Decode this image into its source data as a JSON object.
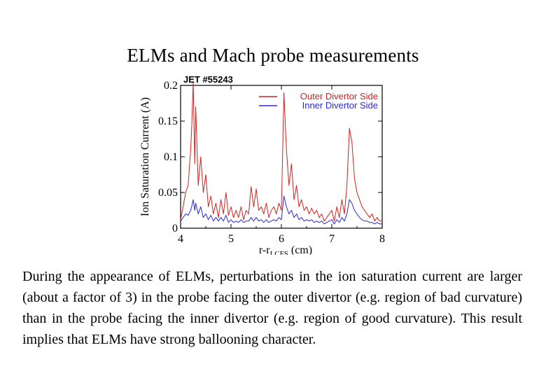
{
  "slide": {
    "title": "ELMs and Mach probe measurements",
    "caption": "During the appearance of ELMs, perturbations in the ion saturation current are larger (about a factor of 3) in the probe facing the outer divertor (e.g. region of bad curvature) than in the probe facing the inner divertor (e.g. region of good curvature). This result implies that ELMs have strong ballooning character."
  },
  "chart_data": {
    "type": "line",
    "title": "JET #55243",
    "xlabel_main": "r-r",
    "xlabel_sub": "LCFS",
    "xlabel_unit": " (cm)",
    "ylabel": "Ion Saturation Current (A)",
    "xlim": [
      4,
      8
    ],
    "ylim": [
      0,
      0.2
    ],
    "xticks": [
      "4",
      "5",
      "6",
      "7",
      "8"
    ],
    "yticks": [
      "0",
      "0.05",
      "0.1",
      "0.15",
      "0.2"
    ],
    "grid": false,
    "legend_position": "top-right",
    "series": [
      {
        "name": "Outer Divertor Side",
        "color": "#d42020",
        "x": [
          4.0,
          4.05,
          4.1,
          4.15,
          4.2,
          4.22,
          4.25,
          4.28,
          4.3,
          4.35,
          4.4,
          4.45,
          4.5,
          4.55,
          4.6,
          4.65,
          4.7,
          4.75,
          4.8,
          4.85,
          4.9,
          4.95,
          5.0,
          5.05,
          5.1,
          5.15,
          5.2,
          5.25,
          5.3,
          5.35,
          5.4,
          5.45,
          5.5,
          5.55,
          5.6,
          5.65,
          5.7,
          5.75,
          5.8,
          5.85,
          5.9,
          5.95,
          6.0,
          6.05,
          6.1,
          6.15,
          6.2,
          6.25,
          6.3,
          6.35,
          6.4,
          6.45,
          6.5,
          6.55,
          6.6,
          6.65,
          6.7,
          6.75,
          6.8,
          6.85,
          6.9,
          6.95,
          7.0,
          7.05,
          7.1,
          7.15,
          7.2,
          7.25,
          7.3,
          7.35,
          7.4,
          7.45,
          7.5,
          7.55,
          7.6,
          7.65,
          7.7,
          7.75,
          7.8,
          7.85,
          7.9,
          7.95,
          8.0
        ],
        "y": [
          0.012,
          0.03,
          0.05,
          0.06,
          0.11,
          0.14,
          0.205,
          0.09,
          0.17,
          0.06,
          0.1,
          0.05,
          0.075,
          0.03,
          0.045,
          0.02,
          0.035,
          0.015,
          0.04,
          0.02,
          0.05,
          0.018,
          0.03,
          0.015,
          0.025,
          0.015,
          0.03,
          0.012,
          0.025,
          0.02,
          0.058,
          0.03,
          0.055,
          0.025,
          0.03,
          0.02,
          0.035,
          0.015,
          0.025,
          0.03,
          0.02,
          0.035,
          0.025,
          0.19,
          0.11,
          0.06,
          0.09,
          0.04,
          0.06,
          0.03,
          0.04,
          0.025,
          0.03,
          0.02,
          0.028,
          0.02,
          0.025,
          0.015,
          0.02,
          0.01,
          0.015,
          0.02,
          0.025,
          0.01,
          0.03,
          0.015,
          0.04,
          0.02,
          0.06,
          0.14,
          0.12,
          0.07,
          0.05,
          0.04,
          0.03,
          0.025,
          0.02,
          0.015,
          0.02,
          0.01,
          0.015,
          0.01,
          0.01
        ]
      },
      {
        "name": "Inner Divertor Side",
        "color": "#2a2ad0",
        "x": [
          4.0,
          4.05,
          4.1,
          4.15,
          4.2,
          4.22,
          4.25,
          4.28,
          4.3,
          4.35,
          4.4,
          4.45,
          4.5,
          4.55,
          4.6,
          4.65,
          4.7,
          4.75,
          4.8,
          4.85,
          4.9,
          4.95,
          5.0,
          5.05,
          5.1,
          5.15,
          5.2,
          5.25,
          5.3,
          5.35,
          5.4,
          5.45,
          5.5,
          5.55,
          5.6,
          5.65,
          5.7,
          5.75,
          5.8,
          5.85,
          5.9,
          5.95,
          6.0,
          6.05,
          6.1,
          6.15,
          6.2,
          6.25,
          6.3,
          6.35,
          6.4,
          6.45,
          6.5,
          6.55,
          6.6,
          6.65,
          6.7,
          6.75,
          6.8,
          6.85,
          6.9,
          6.95,
          7.0,
          7.05,
          7.1,
          7.15,
          7.2,
          7.25,
          7.3,
          7.35,
          7.4,
          7.45,
          7.5,
          7.55,
          7.6,
          7.65,
          7.7,
          7.75,
          7.8,
          7.85,
          7.9,
          7.95,
          8.0
        ],
        "y": [
          0.01,
          0.015,
          0.02,
          0.018,
          0.025,
          0.03,
          0.04,
          0.025,
          0.035,
          0.02,
          0.03,
          0.015,
          0.02,
          0.012,
          0.018,
          0.01,
          0.015,
          0.01,
          0.015,
          0.01,
          0.018,
          0.008,
          0.012,
          0.008,
          0.01,
          0.008,
          0.012,
          0.008,
          0.01,
          0.01,
          0.015,
          0.01,
          0.015,
          0.01,
          0.012,
          0.008,
          0.012,
          0.008,
          0.01,
          0.012,
          0.01,
          0.015,
          0.012,
          0.045,
          0.03,
          0.02,
          0.025,
          0.015,
          0.02,
          0.012,
          0.015,
          0.01,
          0.012,
          0.01,
          0.012,
          0.008,
          0.01,
          0.008,
          0.01,
          0.006,
          0.008,
          0.01,
          0.012,
          0.006,
          0.012,
          0.008,
          0.015,
          0.01,
          0.02,
          0.04,
          0.035,
          0.025,
          0.02,
          0.015,
          0.012,
          0.01,
          0.01,
          0.008,
          0.008,
          0.006,
          0.008,
          0.006,
          0.006
        ]
      }
    ]
  }
}
